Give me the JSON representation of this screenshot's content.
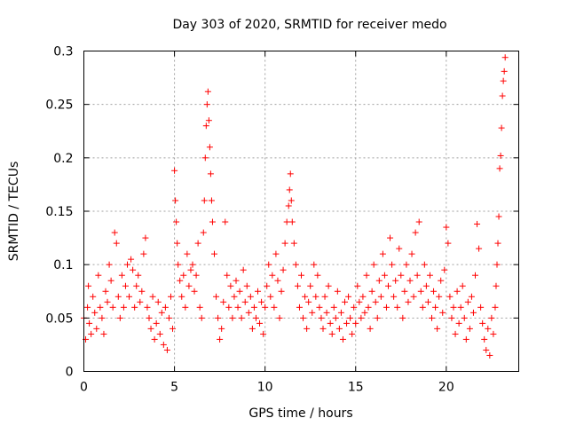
{
  "chart_data": {
    "type": "scatter",
    "title": "Day 303 of 2020, SRMTID for receiver medo",
    "xlabel": "GPS time / hours",
    "ylabel": "SRMTID / TECUs",
    "xlim": [
      0,
      24
    ],
    "ylim": [
      0,
      0.3
    ],
    "x_ticks": [
      0,
      5,
      10,
      15,
      20
    ],
    "x_tick_labels": [
      "0",
      "5",
      "10",
      "15",
      "20"
    ],
    "y_ticks": [
      0,
      0.05,
      0.1,
      0.15,
      0.2,
      0.25,
      0.3
    ],
    "y_tick_labels": [
      "0",
      "0.05",
      "0.1",
      "0.15",
      "0.2",
      "0.25",
      "0.3"
    ],
    "grid": true,
    "marker": "plus",
    "series": [
      {
        "name": "SRMTID",
        "color": "#ff0000",
        "points": [
          [
            0.0,
            0.05
          ],
          [
            0.1,
            0.03
          ],
          [
            0.2,
            0.06
          ],
          [
            0.25,
            0.08
          ],
          [
            0.3,
            0.045
          ],
          [
            0.4,
            0.035
          ],
          [
            0.5,
            0.07
          ],
          [
            0.6,
            0.055
          ],
          [
            0.7,
            0.04
          ],
          [
            0.8,
            0.09
          ],
          [
            0.9,
            0.06
          ],
          [
            1.0,
            0.05
          ],
          [
            1.1,
            0.035
          ],
          [
            1.2,
            0.075
          ],
          [
            1.3,
            0.065
          ],
          [
            1.4,
            0.1
          ],
          [
            1.5,
            0.085
          ],
          [
            1.6,
            0.06
          ],
          [
            1.7,
            0.13
          ],
          [
            1.8,
            0.12
          ],
          [
            1.9,
            0.07
          ],
          [
            2.0,
            0.05
          ],
          [
            2.1,
            0.09
          ],
          [
            2.2,
            0.06
          ],
          [
            2.3,
            0.08
          ],
          [
            2.4,
            0.1
          ],
          [
            2.5,
            0.07
          ],
          [
            2.6,
            0.105
          ],
          [
            2.7,
            0.095
          ],
          [
            2.8,
            0.06
          ],
          [
            2.9,
            0.08
          ],
          [
            3.0,
            0.09
          ],
          [
            3.1,
            0.065
          ],
          [
            3.2,
            0.075
          ],
          [
            3.3,
            0.11
          ],
          [
            3.4,
            0.125
          ],
          [
            3.5,
            0.06
          ],
          [
            3.6,
            0.05
          ],
          [
            3.7,
            0.04
          ],
          [
            3.8,
            0.07
          ],
          [
            3.9,
            0.03
          ],
          [
            4.0,
            0.045
          ],
          [
            4.1,
            0.065
          ],
          [
            4.2,
            0.035
          ],
          [
            4.3,
            0.055
          ],
          [
            4.4,
            0.025
          ],
          [
            4.5,
            0.06
          ],
          [
            4.6,
            0.02
          ],
          [
            4.7,
            0.05
          ],
          [
            4.8,
            0.07
          ],
          [
            4.9,
            0.04
          ],
          [
            5.0,
            0.188
          ],
          [
            5.05,
            0.16
          ],
          [
            5.1,
            0.14
          ],
          [
            5.15,
            0.12
          ],
          [
            5.2,
            0.1
          ],
          [
            5.3,
            0.085
          ],
          [
            5.4,
            0.07
          ],
          [
            5.5,
            0.09
          ],
          [
            5.6,
            0.06
          ],
          [
            5.7,
            0.11
          ],
          [
            5.8,
            0.08
          ],
          [
            5.9,
            0.095
          ],
          [
            6.0,
            0.1
          ],
          [
            6.1,
            0.075
          ],
          [
            6.2,
            0.09
          ],
          [
            6.3,
            0.12
          ],
          [
            6.4,
            0.06
          ],
          [
            6.5,
            0.05
          ],
          [
            6.6,
            0.13
          ],
          [
            6.65,
            0.16
          ],
          [
            6.7,
            0.2
          ],
          [
            6.75,
            0.23
          ],
          [
            6.8,
            0.25
          ],
          [
            6.85,
            0.262
          ],
          [
            6.9,
            0.235
          ],
          [
            6.95,
            0.21
          ],
          [
            7.0,
            0.185
          ],
          [
            7.05,
            0.16
          ],
          [
            7.1,
            0.14
          ],
          [
            7.2,
            0.11
          ],
          [
            7.3,
            0.07
          ],
          [
            7.4,
            0.05
          ],
          [
            7.5,
            0.03
          ],
          [
            7.6,
            0.04
          ],
          [
            7.7,
            0.065
          ],
          [
            7.8,
            0.14
          ],
          [
            7.9,
            0.09
          ],
          [
            8.0,
            0.06
          ],
          [
            8.1,
            0.08
          ],
          [
            8.2,
            0.05
          ],
          [
            8.3,
            0.07
          ],
          [
            8.4,
            0.085
          ],
          [
            8.5,
            0.06
          ],
          [
            8.6,
            0.075
          ],
          [
            8.7,
            0.05
          ],
          [
            8.8,
            0.095
          ],
          [
            8.9,
            0.065
          ],
          [
            9.0,
            0.08
          ],
          [
            9.1,
            0.055
          ],
          [
            9.2,
            0.07
          ],
          [
            9.3,
            0.04
          ],
          [
            9.4,
            0.06
          ],
          [
            9.5,
            0.05
          ],
          [
            9.6,
            0.075
          ],
          [
            9.7,
            0.045
          ],
          [
            9.8,
            0.065
          ],
          [
            9.9,
            0.035
          ],
          [
            10.0,
            0.06
          ],
          [
            10.1,
            0.08
          ],
          [
            10.2,
            0.1
          ],
          [
            10.3,
            0.07
          ],
          [
            10.4,
            0.09
          ],
          [
            10.5,
            0.06
          ],
          [
            10.6,
            0.11
          ],
          [
            10.7,
            0.085
          ],
          [
            10.8,
            0.05
          ],
          [
            10.9,
            0.075
          ],
          [
            11.0,
            0.095
          ],
          [
            11.1,
            0.12
          ],
          [
            11.2,
            0.14
          ],
          [
            11.3,
            0.155
          ],
          [
            11.35,
            0.17
          ],
          [
            11.4,
            0.185
          ],
          [
            11.45,
            0.16
          ],
          [
            11.5,
            0.14
          ],
          [
            11.6,
            0.12
          ],
          [
            11.7,
            0.1
          ],
          [
            11.8,
            0.08
          ],
          [
            11.9,
            0.06
          ],
          [
            12.0,
            0.09
          ],
          [
            12.1,
            0.05
          ],
          [
            12.2,
            0.07
          ],
          [
            12.3,
            0.04
          ],
          [
            12.4,
            0.065
          ],
          [
            12.5,
            0.08
          ],
          [
            12.6,
            0.055
          ],
          [
            12.7,
            0.1
          ],
          [
            12.8,
            0.07
          ],
          [
            12.9,
            0.09
          ],
          [
            13.0,
            0.06
          ],
          [
            13.1,
            0.05
          ],
          [
            13.2,
            0.04
          ],
          [
            13.3,
            0.07
          ],
          [
            13.4,
            0.055
          ],
          [
            13.5,
            0.08
          ],
          [
            13.6,
            0.045
          ],
          [
            13.7,
            0.035
          ],
          [
            13.8,
            0.06
          ],
          [
            13.9,
            0.05
          ],
          [
            14.0,
            0.075
          ],
          [
            14.1,
            0.04
          ],
          [
            14.2,
            0.055
          ],
          [
            14.3,
            0.03
          ],
          [
            14.4,
            0.065
          ],
          [
            14.5,
            0.045
          ],
          [
            14.6,
            0.07
          ],
          [
            14.7,
            0.05
          ],
          [
            14.8,
            0.035
          ],
          [
            14.9,
            0.06
          ],
          [
            15.0,
            0.045
          ],
          [
            15.1,
            0.08
          ],
          [
            15.2,
            0.065
          ],
          [
            15.3,
            0.05
          ],
          [
            15.4,
            0.07
          ],
          [
            15.5,
            0.055
          ],
          [
            15.6,
            0.09
          ],
          [
            15.7,
            0.06
          ],
          [
            15.8,
            0.04
          ],
          [
            15.9,
            0.075
          ],
          [
            16.0,
            0.1
          ],
          [
            16.1,
            0.065
          ],
          [
            16.2,
            0.05
          ],
          [
            16.3,
            0.085
          ],
          [
            16.4,
            0.07
          ],
          [
            16.5,
            0.11
          ],
          [
            16.6,
            0.09
          ],
          [
            16.7,
            0.06
          ],
          [
            16.8,
            0.08
          ],
          [
            16.9,
            0.125
          ],
          [
            17.0,
            0.1
          ],
          [
            17.1,
            0.07
          ],
          [
            17.2,
            0.085
          ],
          [
            17.3,
            0.06
          ],
          [
            17.4,
            0.115
          ],
          [
            17.5,
            0.09
          ],
          [
            17.6,
            0.05
          ],
          [
            17.7,
            0.075
          ],
          [
            17.8,
            0.1
          ],
          [
            17.9,
            0.065
          ],
          [
            18.0,
            0.085
          ],
          [
            18.1,
            0.11
          ],
          [
            18.2,
            0.07
          ],
          [
            18.3,
            0.13
          ],
          [
            18.4,
            0.09
          ],
          [
            18.5,
            0.14
          ],
          [
            18.6,
            0.075
          ],
          [
            18.7,
            0.06
          ],
          [
            18.8,
            0.1
          ],
          [
            18.9,
            0.08
          ],
          [
            19.0,
            0.065
          ],
          [
            19.1,
            0.09
          ],
          [
            19.2,
            0.05
          ],
          [
            19.3,
            0.075
          ],
          [
            19.4,
            0.06
          ],
          [
            19.5,
            0.04
          ],
          [
            19.6,
            0.07
          ],
          [
            19.7,
            0.085
          ],
          [
            19.8,
            0.055
          ],
          [
            19.9,
            0.095
          ],
          [
            20.0,
            0.135
          ],
          [
            20.1,
            0.12
          ],
          [
            20.2,
            0.07
          ],
          [
            20.3,
            0.05
          ],
          [
            20.4,
            0.06
          ],
          [
            20.5,
            0.035
          ],
          [
            20.6,
            0.075
          ],
          [
            20.7,
            0.045
          ],
          [
            20.8,
            0.06
          ],
          [
            20.9,
            0.08
          ],
          [
            21.0,
            0.05
          ],
          [
            21.1,
            0.03
          ],
          [
            21.2,
            0.065
          ],
          [
            21.3,
            0.04
          ],
          [
            21.4,
            0.07
          ],
          [
            21.5,
            0.055
          ],
          [
            21.6,
            0.09
          ],
          [
            21.7,
            0.138
          ],
          [
            21.8,
            0.115
          ],
          [
            21.9,
            0.06
          ],
          [
            22.0,
            0.045
          ],
          [
            22.1,
            0.03
          ],
          [
            22.2,
            0.02
          ],
          [
            22.3,
            0.04
          ],
          [
            22.4,
            0.015
          ],
          [
            22.5,
            0.05
          ],
          [
            22.6,
            0.035
          ],
          [
            22.7,
            0.06
          ],
          [
            22.75,
            0.08
          ],
          [
            22.8,
            0.1
          ],
          [
            22.85,
            0.12
          ],
          [
            22.9,
            0.145
          ],
          [
            22.95,
            0.19
          ],
          [
            23.0,
            0.202
          ],
          [
            23.05,
            0.228
          ],
          [
            23.1,
            0.258
          ],
          [
            23.15,
            0.272
          ],
          [
            23.2,
            0.281
          ],
          [
            23.25,
            0.294
          ]
        ]
      }
    ]
  }
}
